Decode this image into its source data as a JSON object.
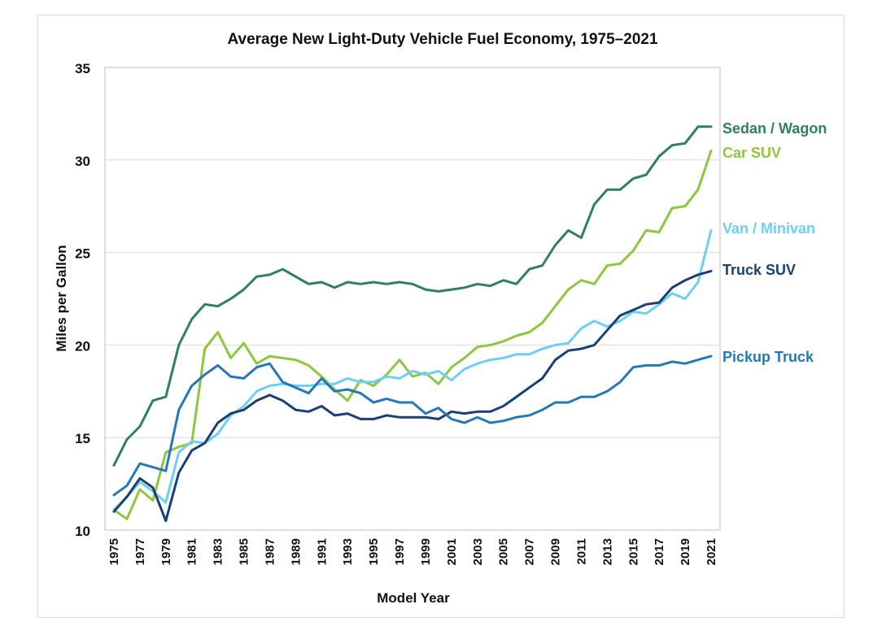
{
  "chart_data": {
    "type": "line",
    "title": "Average New Light-Duty Vehicle Fuel Economy, 1975–2021",
    "xlabel": "Model Year",
    "ylabel": "Miles per Gallon",
    "ylim": [
      10,
      35
    ],
    "yticks": [
      "10",
      "15",
      "20",
      "25",
      "30",
      "35"
    ],
    "xlim": [
      1975,
      2021
    ],
    "xticks": [
      "1975",
      "1977",
      "1979",
      "1981",
      "1983",
      "1985",
      "1987",
      "1989",
      "1991",
      "1993",
      "1995",
      "1997",
      "1999",
      "2001",
      "2003",
      "2005",
      "2007",
      "2009",
      "2011",
      "2013",
      "2015",
      "2017",
      "2019",
      "2021"
    ],
    "grid": "horizontal",
    "legend": "inline labels at right end of lines",
    "x": [
      1975,
      1976,
      1977,
      1978,
      1979,
      1980,
      1981,
      1982,
      1983,
      1984,
      1985,
      1986,
      1987,
      1988,
      1989,
      1990,
      1991,
      1992,
      1993,
      1994,
      1995,
      1996,
      1997,
      1998,
      1999,
      2000,
      2001,
      2002,
      2003,
      2004,
      2005,
      2006,
      2007,
      2008,
      2009,
      2010,
      2011,
      2012,
      2013,
      2014,
      2015,
      2016,
      2017,
      2018,
      2019,
      2020,
      2021
    ],
    "series": [
      {
        "name": "Sedan / Wagon",
        "color": "#2e8060",
        "values": [
          13.5,
          14.9,
          15.6,
          17.0,
          17.2,
          20.0,
          21.4,
          22.2,
          22.1,
          22.5,
          23.0,
          23.7,
          23.8,
          24.1,
          23.7,
          23.3,
          23.4,
          23.1,
          23.4,
          23.3,
          23.4,
          23.3,
          23.4,
          23.3,
          23.0,
          22.9,
          23.0,
          23.1,
          23.3,
          23.2,
          23.5,
          23.3,
          24.1,
          24.3,
          25.4,
          26.2,
          25.8,
          27.6,
          28.4,
          28.4,
          29.0,
          29.2,
          30.2,
          30.8,
          30.9,
          31.8,
          31.8
        ]
      },
      {
        "name": "Car SUV",
        "color": "#8dc63f",
        "values": [
          11.1,
          10.6,
          12.2,
          11.6,
          14.2,
          14.5,
          14.7,
          19.8,
          20.7,
          19.3,
          20.1,
          19.0,
          19.4,
          19.3,
          19.2,
          18.9,
          18.3,
          17.6,
          17.0,
          18.1,
          17.8,
          18.4,
          19.2,
          18.3,
          18.5,
          17.9,
          18.8,
          19.3,
          19.9,
          20.0,
          20.2,
          20.5,
          20.7,
          21.2,
          22.1,
          23.0,
          23.5,
          23.3,
          24.3,
          24.4,
          25.1,
          26.2,
          26.1,
          27.4,
          27.5,
          28.4,
          30.5
        ]
      },
      {
        "name": "Van / Minivan",
        "color": "#6ecff6",
        "values": [
          11.1,
          11.8,
          12.6,
          12.1,
          11.5,
          14.2,
          14.8,
          14.7,
          15.2,
          16.2,
          16.7,
          17.5,
          17.8,
          17.9,
          17.8,
          17.8,
          17.9,
          17.9,
          18.2,
          18.0,
          18.0,
          18.3,
          18.2,
          18.6,
          18.4,
          18.6,
          18.1,
          18.7,
          19.0,
          19.2,
          19.3,
          19.5,
          19.5,
          19.8,
          20.0,
          20.1,
          20.9,
          21.3,
          21.0,
          21.3,
          21.8,
          21.7,
          22.2,
          22.8,
          22.5,
          23.4,
          26.2
        ]
      },
      {
        "name": "Truck SUV",
        "color": "#1b3f73",
        "values": [
          11.0,
          11.8,
          12.8,
          12.3,
          10.5,
          13.1,
          14.3,
          14.7,
          15.8,
          16.3,
          16.5,
          17.0,
          17.3,
          17.0,
          16.5,
          16.4,
          16.7,
          16.2,
          16.3,
          16.0,
          16.0,
          16.2,
          16.1,
          16.1,
          16.1,
          16.0,
          16.4,
          16.3,
          16.4,
          16.4,
          16.7,
          17.2,
          17.7,
          18.2,
          19.2,
          19.7,
          19.8,
          20.0,
          20.8,
          21.6,
          21.9,
          22.2,
          22.3,
          23.1,
          23.5,
          23.8,
          24.0
        ]
      },
      {
        "name": "Pickup Truck",
        "color": "#2577b6",
        "values": [
          11.9,
          12.4,
          13.6,
          13.4,
          13.2,
          16.5,
          17.8,
          18.4,
          18.9,
          18.3,
          18.2,
          18.8,
          19.0,
          18.0,
          17.7,
          17.4,
          18.2,
          17.5,
          17.6,
          17.4,
          16.9,
          17.1,
          16.9,
          16.9,
          16.3,
          16.6,
          16.0,
          15.8,
          16.1,
          15.8,
          15.9,
          16.1,
          16.2,
          16.5,
          16.9,
          16.9,
          17.2,
          17.2,
          17.5,
          18.0,
          18.8,
          18.9,
          18.9,
          19.1,
          19.0,
          19.2,
          19.4
        ]
      }
    ]
  }
}
